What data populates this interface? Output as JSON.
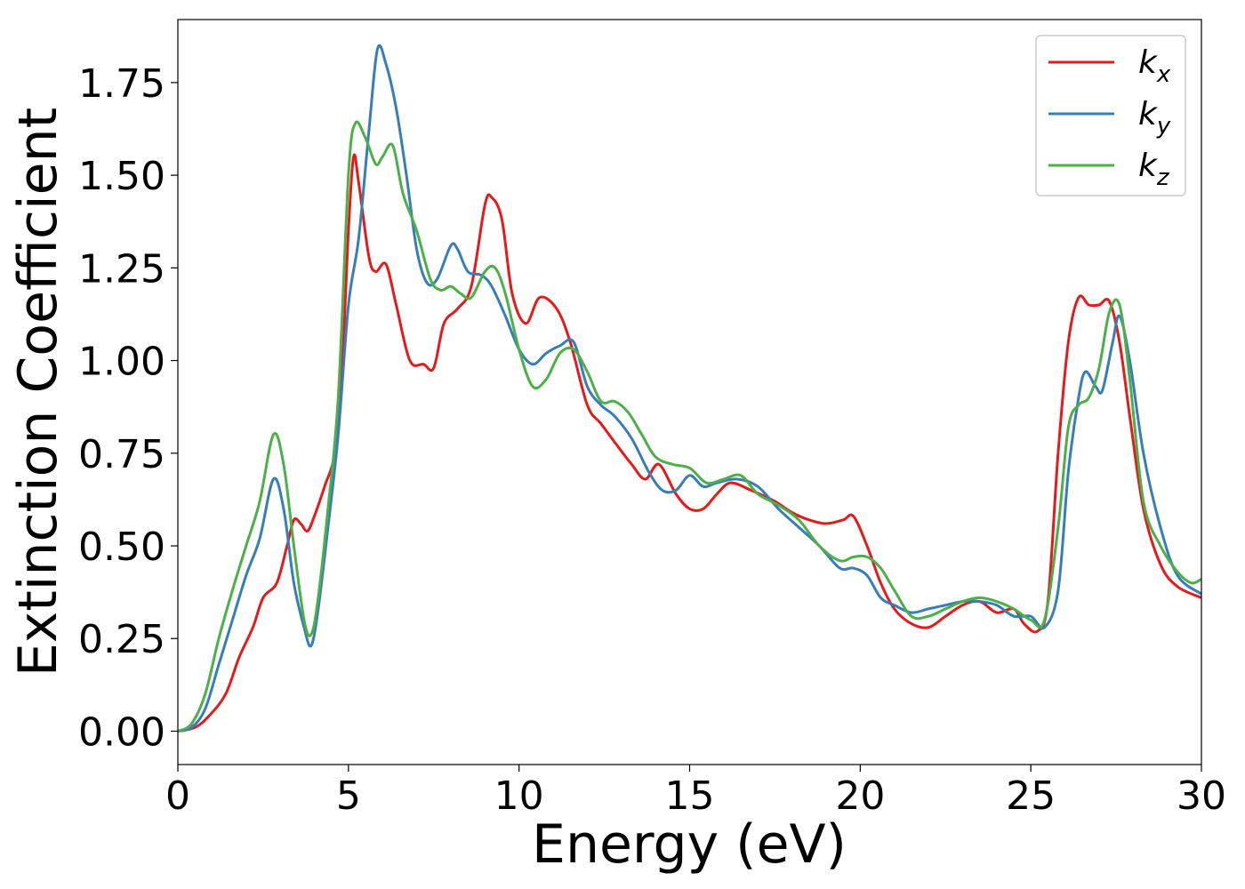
{
  "chart_data": {
    "type": "line",
    "title": "",
    "xlabel": "Energy (eV)",
    "ylabel": "Extinction Coefficient",
    "xlim": [
      0,
      30
    ],
    "ylim": [
      -0.09,
      1.92
    ],
    "xticks": [
      0,
      5,
      10,
      15,
      20,
      25,
      30
    ],
    "xtick_labels": [
      "0",
      "5",
      "10",
      "15",
      "20",
      "25",
      "30"
    ],
    "yticks": [
      0.0,
      0.25,
      0.5,
      0.75,
      1.0,
      1.25,
      1.5,
      1.75
    ],
    "ytick_labels": [
      "0.00",
      "0.25",
      "0.50",
      "0.75",
      "1.00",
      "1.25",
      "1.50",
      "1.75"
    ],
    "grid": false,
    "legend_position": "top-right",
    "series": [
      {
        "name": "k_x",
        "legend_base": "k",
        "legend_sub": "x",
        "color": "#e41a1c",
        "x": [
          0,
          0.5,
          0.9,
          1.4,
          1.8,
          2.2,
          2.5,
          2.9,
          3.2,
          3.4,
          3.6,
          3.8,
          4.0,
          4.3,
          4.6,
          4.8,
          5.0,
          5.15,
          5.3,
          5.6,
          5.8,
          6.1,
          6.4,
          6.8,
          7.2,
          7.5,
          7.8,
          8.2,
          8.6,
          9.0,
          9.2,
          9.5,
          9.8,
          10.2,
          10.6,
          11.1,
          11.5,
          12.0,
          12.4,
          12.8,
          13.3,
          13.7,
          14.1,
          14.6,
          15.0,
          15.4,
          15.8,
          16.2,
          16.8,
          17.5,
          18.0,
          18.5,
          19.0,
          19.5,
          19.8,
          20.2,
          20.6,
          21.0,
          21.5,
          22.0,
          22.5,
          23.0,
          23.5,
          24.0,
          24.5,
          24.8,
          25.2,
          25.5,
          25.8,
          26.1,
          26.4,
          26.7,
          27.0,
          27.3,
          27.6,
          27.9,
          28.3,
          28.8,
          29.3,
          30.0
        ],
        "y": [
          0.0,
          0.01,
          0.04,
          0.1,
          0.2,
          0.28,
          0.36,
          0.4,
          0.5,
          0.57,
          0.56,
          0.54,
          0.58,
          0.66,
          0.75,
          0.95,
          1.35,
          1.55,
          1.48,
          1.28,
          1.24,
          1.26,
          1.15,
          1.0,
          0.99,
          0.98,
          1.1,
          1.14,
          1.2,
          1.42,
          1.44,
          1.38,
          1.18,
          1.1,
          1.17,
          1.14,
          1.05,
          0.88,
          0.83,
          0.78,
          0.72,
          0.68,
          0.72,
          0.64,
          0.6,
          0.6,
          0.64,
          0.67,
          0.65,
          0.62,
          0.59,
          0.57,
          0.56,
          0.57,
          0.58,
          0.5,
          0.4,
          0.33,
          0.29,
          0.28,
          0.31,
          0.34,
          0.35,
          0.32,
          0.33,
          0.29,
          0.27,
          0.35,
          0.75,
          1.05,
          1.17,
          1.15,
          1.15,
          1.16,
          1.05,
          0.85,
          0.6,
          0.45,
          0.39,
          0.36
        ]
      },
      {
        "name": "k_y",
        "legend_base": "k",
        "legend_sub": "y",
        "color": "#377eb8",
        "x": [
          0,
          0.4,
          0.8,
          1.2,
          1.6,
          2.0,
          2.4,
          2.8,
          3.1,
          3.4,
          3.7,
          3.9,
          4.1,
          4.4,
          4.7,
          5.0,
          5.3,
          5.6,
          5.85,
          6.1,
          6.4,
          6.7,
          7.0,
          7.3,
          7.6,
          8.0,
          8.2,
          8.5,
          8.9,
          9.2,
          9.6,
          10.0,
          10.4,
          10.8,
          11.2,
          11.6,
          12.0,
          12.4,
          12.8,
          13.3,
          13.8,
          14.2,
          14.6,
          15.0,
          15.4,
          15.8,
          16.4,
          17.0,
          17.6,
          18.2,
          18.8,
          19.4,
          19.8,
          20.2,
          20.6,
          21.0,
          21.5,
          22.0,
          22.5,
          23.0,
          23.5,
          24.0,
          24.5,
          25.0,
          25.4,
          25.8,
          26.1,
          26.4,
          26.6,
          26.9,
          27.1,
          27.4,
          27.6,
          27.9,
          28.3,
          28.8,
          29.3,
          30.0
        ],
        "y": [
          0.0,
          0.01,
          0.06,
          0.18,
          0.3,
          0.42,
          0.52,
          0.68,
          0.6,
          0.4,
          0.28,
          0.23,
          0.32,
          0.55,
          0.8,
          1.15,
          1.33,
          1.62,
          1.84,
          1.8,
          1.68,
          1.5,
          1.3,
          1.21,
          1.22,
          1.31,
          1.3,
          1.24,
          1.23,
          1.2,
          1.12,
          1.03,
          0.99,
          1.02,
          1.04,
          1.05,
          0.93,
          0.88,
          0.85,
          0.79,
          0.7,
          0.65,
          0.65,
          0.69,
          0.66,
          0.67,
          0.68,
          0.66,
          0.6,
          0.55,
          0.5,
          0.44,
          0.44,
          0.42,
          0.36,
          0.34,
          0.32,
          0.33,
          0.34,
          0.35,
          0.35,
          0.34,
          0.31,
          0.31,
          0.28,
          0.38,
          0.7,
          0.9,
          0.97,
          0.93,
          0.92,
          1.05,
          1.12,
          1.0,
          0.75,
          0.55,
          0.42,
          0.37
        ]
      },
      {
        "name": "k_z",
        "legend_base": "k",
        "legend_sub": "z",
        "color": "#4daf4a",
        "x": [
          0,
          0.4,
          0.8,
          1.2,
          1.6,
          2.0,
          2.4,
          2.8,
          3.1,
          3.4,
          3.7,
          3.9,
          4.1,
          4.4,
          4.7,
          5.0,
          5.2,
          5.5,
          5.8,
          6.0,
          6.3,
          6.6,
          7.0,
          7.4,
          7.7,
          8.0,
          8.3,
          8.6,
          9.0,
          9.3,
          9.6,
          10.0,
          10.4,
          10.8,
          11.2,
          11.6,
          12.0,
          12.4,
          12.8,
          13.2,
          13.6,
          14.0,
          14.5,
          15.0,
          15.5,
          16.0,
          16.5,
          17.0,
          17.6,
          18.2,
          18.8,
          19.4,
          19.8,
          20.2,
          20.6,
          21.0,
          21.5,
          22.0,
          22.5,
          23.0,
          23.5,
          24.0,
          24.5,
          25.0,
          25.4,
          25.8,
          26.1,
          26.4,
          26.7,
          27.0,
          27.3,
          27.6,
          27.9,
          28.3,
          28.8,
          29.3,
          29.7,
          30.0
        ],
        "y": [
          0.0,
          0.02,
          0.1,
          0.25,
          0.38,
          0.5,
          0.62,
          0.8,
          0.72,
          0.5,
          0.3,
          0.26,
          0.35,
          0.6,
          0.9,
          1.5,
          1.64,
          1.6,
          1.53,
          1.55,
          1.58,
          1.45,
          1.35,
          1.22,
          1.19,
          1.2,
          1.18,
          1.17,
          1.24,
          1.25,
          1.18,
          1.03,
          0.93,
          0.95,
          1.02,
          1.03,
          0.97,
          0.89,
          0.89,
          0.86,
          0.8,
          0.74,
          0.72,
          0.71,
          0.67,
          0.68,
          0.69,
          0.64,
          0.61,
          0.57,
          0.5,
          0.46,
          0.47,
          0.47,
          0.44,
          0.38,
          0.31,
          0.31,
          0.33,
          0.35,
          0.36,
          0.35,
          0.33,
          0.3,
          0.3,
          0.55,
          0.82,
          0.88,
          0.9,
          0.98,
          1.13,
          1.15,
          0.95,
          0.62,
          0.5,
          0.43,
          0.4,
          0.41
        ]
      }
    ]
  }
}
